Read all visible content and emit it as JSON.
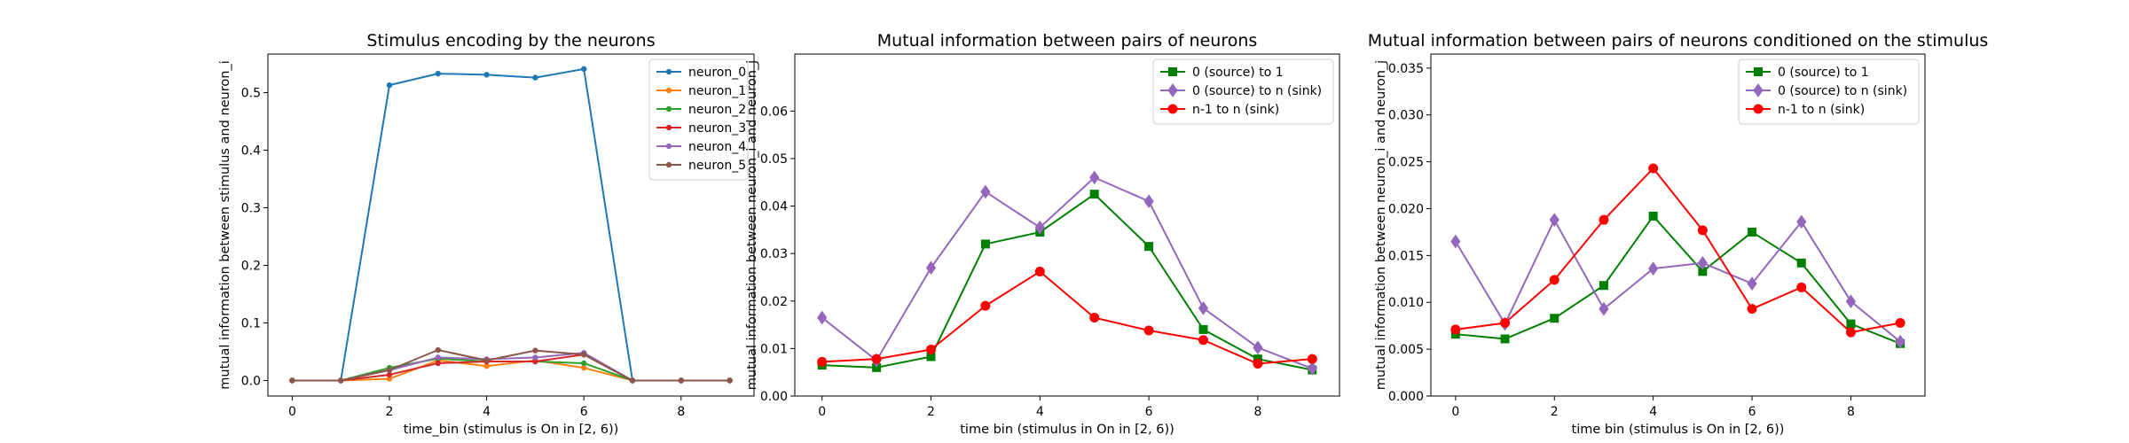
{
  "chart_data": [
    {
      "type": "line",
      "title": "Stimulus encoding by the neurons",
      "xlabel": "time_bin (stimulus is On in [2, 6))",
      "ylabel": "mutual information between stimulus and neuron_i",
      "xlim": [
        -0.5,
        9.5
      ],
      "ylim": [
        -0.027,
        0.567
      ],
      "xticks": [
        0,
        2,
        4,
        6,
        8
      ],
      "xtick_labels": [
        "0",
        "2",
        "4",
        "6",
        "8"
      ],
      "yticks": [
        0.0,
        0.1,
        0.2,
        0.3,
        0.4,
        0.5
      ],
      "ytick_labels": [
        "0.0",
        "0.1",
        "0.2",
        "0.3",
        "0.4",
        "0.5"
      ],
      "legend_position": "upper right",
      "x": [
        0,
        1,
        2,
        3,
        4,
        5,
        6,
        7,
        8,
        9
      ],
      "series": [
        {
          "name": "neuron_0",
          "color": "#1f77b4",
          "marker": "dot",
          "values": [
            0.0,
            0.0,
            0.513,
            0.533,
            0.531,
            0.526,
            0.541,
            0.0,
            0.0,
            0.0
          ]
        },
        {
          "name": "neuron_1",
          "color": "#ff7f0e",
          "marker": "dot",
          "values": [
            0.0,
            0.0,
            0.003,
            0.035,
            0.025,
            0.035,
            0.022,
            0.0,
            0.0,
            0.0
          ]
        },
        {
          "name": "neuron_2",
          "color": "#2ca02c",
          "marker": "dot",
          "values": [
            0.0,
            0.0,
            0.022,
            0.038,
            0.033,
            0.033,
            0.03,
            0.0,
            0.0,
            0.0
          ]
        },
        {
          "name": "neuron_3",
          "color": "#d62728",
          "marker": "dot",
          "values": [
            0.0,
            0.0,
            0.01,
            0.03,
            0.033,
            0.033,
            0.045,
            0.0,
            0.0,
            0.0
          ]
        },
        {
          "name": "neuron_4",
          "color": "#9467bd",
          "marker": "dot",
          "values": [
            0.0,
            0.0,
            0.018,
            0.04,
            0.037,
            0.04,
            0.048,
            0.0,
            0.0,
            0.0
          ]
        },
        {
          "name": "neuron_5",
          "color": "#8c564b",
          "marker": "dot",
          "values": [
            0.0,
            0.0,
            0.018,
            0.053,
            0.035,
            0.052,
            0.045,
            0.0,
            0.0,
            0.0
          ]
        }
      ]
    },
    {
      "type": "line",
      "title": "Mutual information between pairs of neurons",
      "xlabel": "time bin (stimulus in On in [2, 6))",
      "ylabel": "mutual information between neuron_i and neuron_j",
      "xlim": [
        -0.5,
        9.5
      ],
      "ylim": [
        0.0,
        0.072
      ],
      "xticks": [
        0,
        2,
        4,
        6,
        8
      ],
      "xtick_labels": [
        "0",
        "2",
        "4",
        "6",
        "8"
      ],
      "yticks": [
        0.0,
        0.01,
        0.02,
        0.03,
        0.04,
        0.05,
        0.06
      ],
      "ytick_labels": [
        "0.00",
        "0.01",
        "0.02",
        "0.03",
        "0.04",
        "0.05",
        "0.06"
      ],
      "legend_position": "upper right",
      "x": [
        0,
        1,
        2,
        3,
        4,
        5,
        6,
        7,
        8,
        9
      ],
      "series": [
        {
          "name": "0 (source) to 1",
          "color": "#008000",
          "marker": "square",
          "values": [
            0.0065,
            0.006,
            0.0083,
            0.032,
            0.0345,
            0.0425,
            0.0315,
            0.014,
            0.0078,
            0.0055
          ]
        },
        {
          "name": "0 (source) to n (sink)",
          "color": "#9467bd",
          "marker": "diamond",
          "values": [
            0.0165,
            0.0075,
            0.027,
            0.043,
            0.0355,
            0.046,
            0.041,
            0.0185,
            0.0102,
            0.0058
          ]
        },
        {
          "name": "n-1 to n (sink)",
          "color": "#ff0000",
          "marker": "circle",
          "values": [
            0.0072,
            0.0078,
            0.0098,
            0.019,
            0.0262,
            0.0165,
            0.0138,
            0.0118,
            0.0068,
            0.0078
          ]
        }
      ]
    },
    {
      "type": "line",
      "title": "Mutual information between pairs of neurons conditioned on the stimulus",
      "xlabel": "time bin (stimulus is On in [2, 6))",
      "ylabel": "mutual information between neuron_i and neuron_j",
      "xlim": [
        -0.5,
        9.5
      ],
      "ylim": [
        0.0,
        0.0365
      ],
      "xticks": [
        0,
        2,
        4,
        6,
        8
      ],
      "xtick_labels": [
        "0",
        "2",
        "4",
        "6",
        "8"
      ],
      "yticks": [
        0.0,
        0.005,
        0.01,
        0.015,
        0.02,
        0.025,
        0.03,
        0.035
      ],
      "ytick_labels": [
        "0.000",
        "0.005",
        "0.010",
        "0.015",
        "0.020",
        "0.025",
        "0.030",
        "0.035"
      ],
      "legend_position": "upper right",
      "x": [
        0,
        1,
        2,
        3,
        4,
        5,
        6,
        7,
        8,
        9
      ],
      "series": [
        {
          "name": "0 (source) to 1",
          "color": "#008000",
          "marker": "square",
          "values": [
            0.0066,
            0.0061,
            0.0083,
            0.0118,
            0.0192,
            0.0133,
            0.0175,
            0.0142,
            0.0077,
            0.0056
          ]
        },
        {
          "name": "0 (source) to n (sink)",
          "color": "#9467bd",
          "marker": "diamond",
          "values": [
            0.0165,
            0.0077,
            0.0188,
            0.0093,
            0.0136,
            0.0142,
            0.012,
            0.0186,
            0.0101,
            0.0058
          ]
        },
        {
          "name": "n-1 to n (sink)",
          "color": "#ff0000",
          "marker": "circle",
          "values": [
            0.0071,
            0.0078,
            0.0124,
            0.0188,
            0.0243,
            0.0177,
            0.0093,
            0.0116,
            0.0068,
            0.0078
          ]
        }
      ]
    }
  ]
}
